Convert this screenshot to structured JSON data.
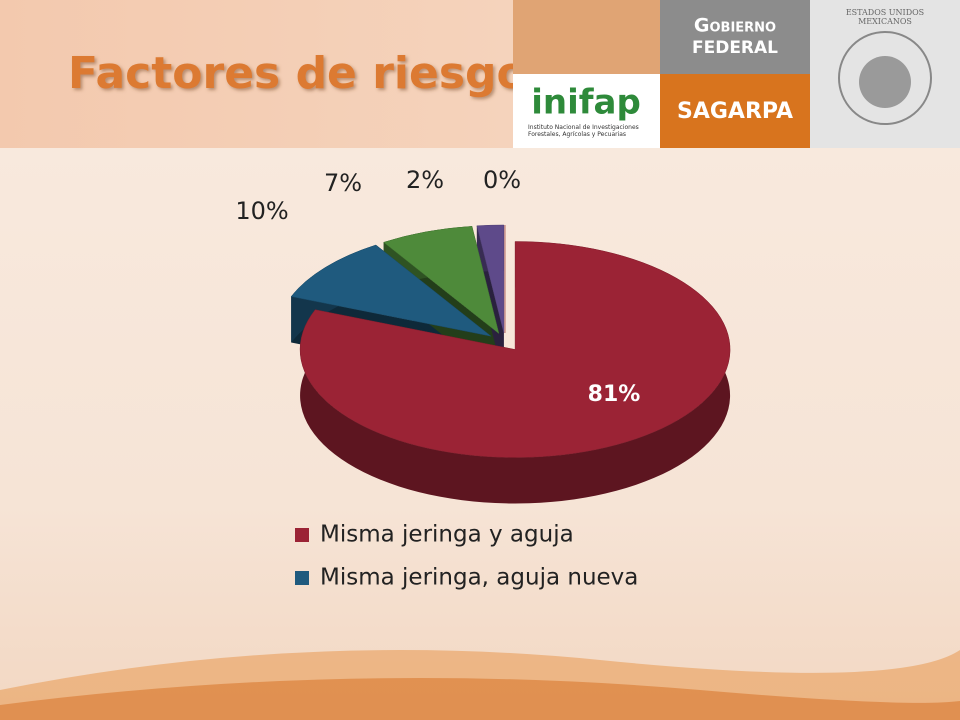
{
  "header": {
    "title": "Factores de riesgo",
    "inifap": "inifap",
    "inifap_sub": "Instituto Nacional de Investigaciones Forestales, Agrícolas y Pecuarias",
    "gobierno": "Gobierno",
    "federal": "FEDERAL",
    "sagarpa": "SAGARPA",
    "seal": "ESTADOS UNIDOS MEXICANOS"
  },
  "chart_data": {
    "type": "pie",
    "three_d": true,
    "categories": [
      "Misma jeringa y aguja",
      "Misma jeringa, aguja nueva",
      null,
      null,
      null
    ],
    "values": [
      81,
      10,
      7,
      2,
      0
    ],
    "value_labels": [
      "81%",
      "10%",
      "7%",
      "2%",
      "0%"
    ],
    "colors": [
      "#9b2335",
      "#1f5a7e",
      "#4e8a3a",
      "#5e4a8a",
      "#c0504d"
    ],
    "legend": "bottom"
  }
}
